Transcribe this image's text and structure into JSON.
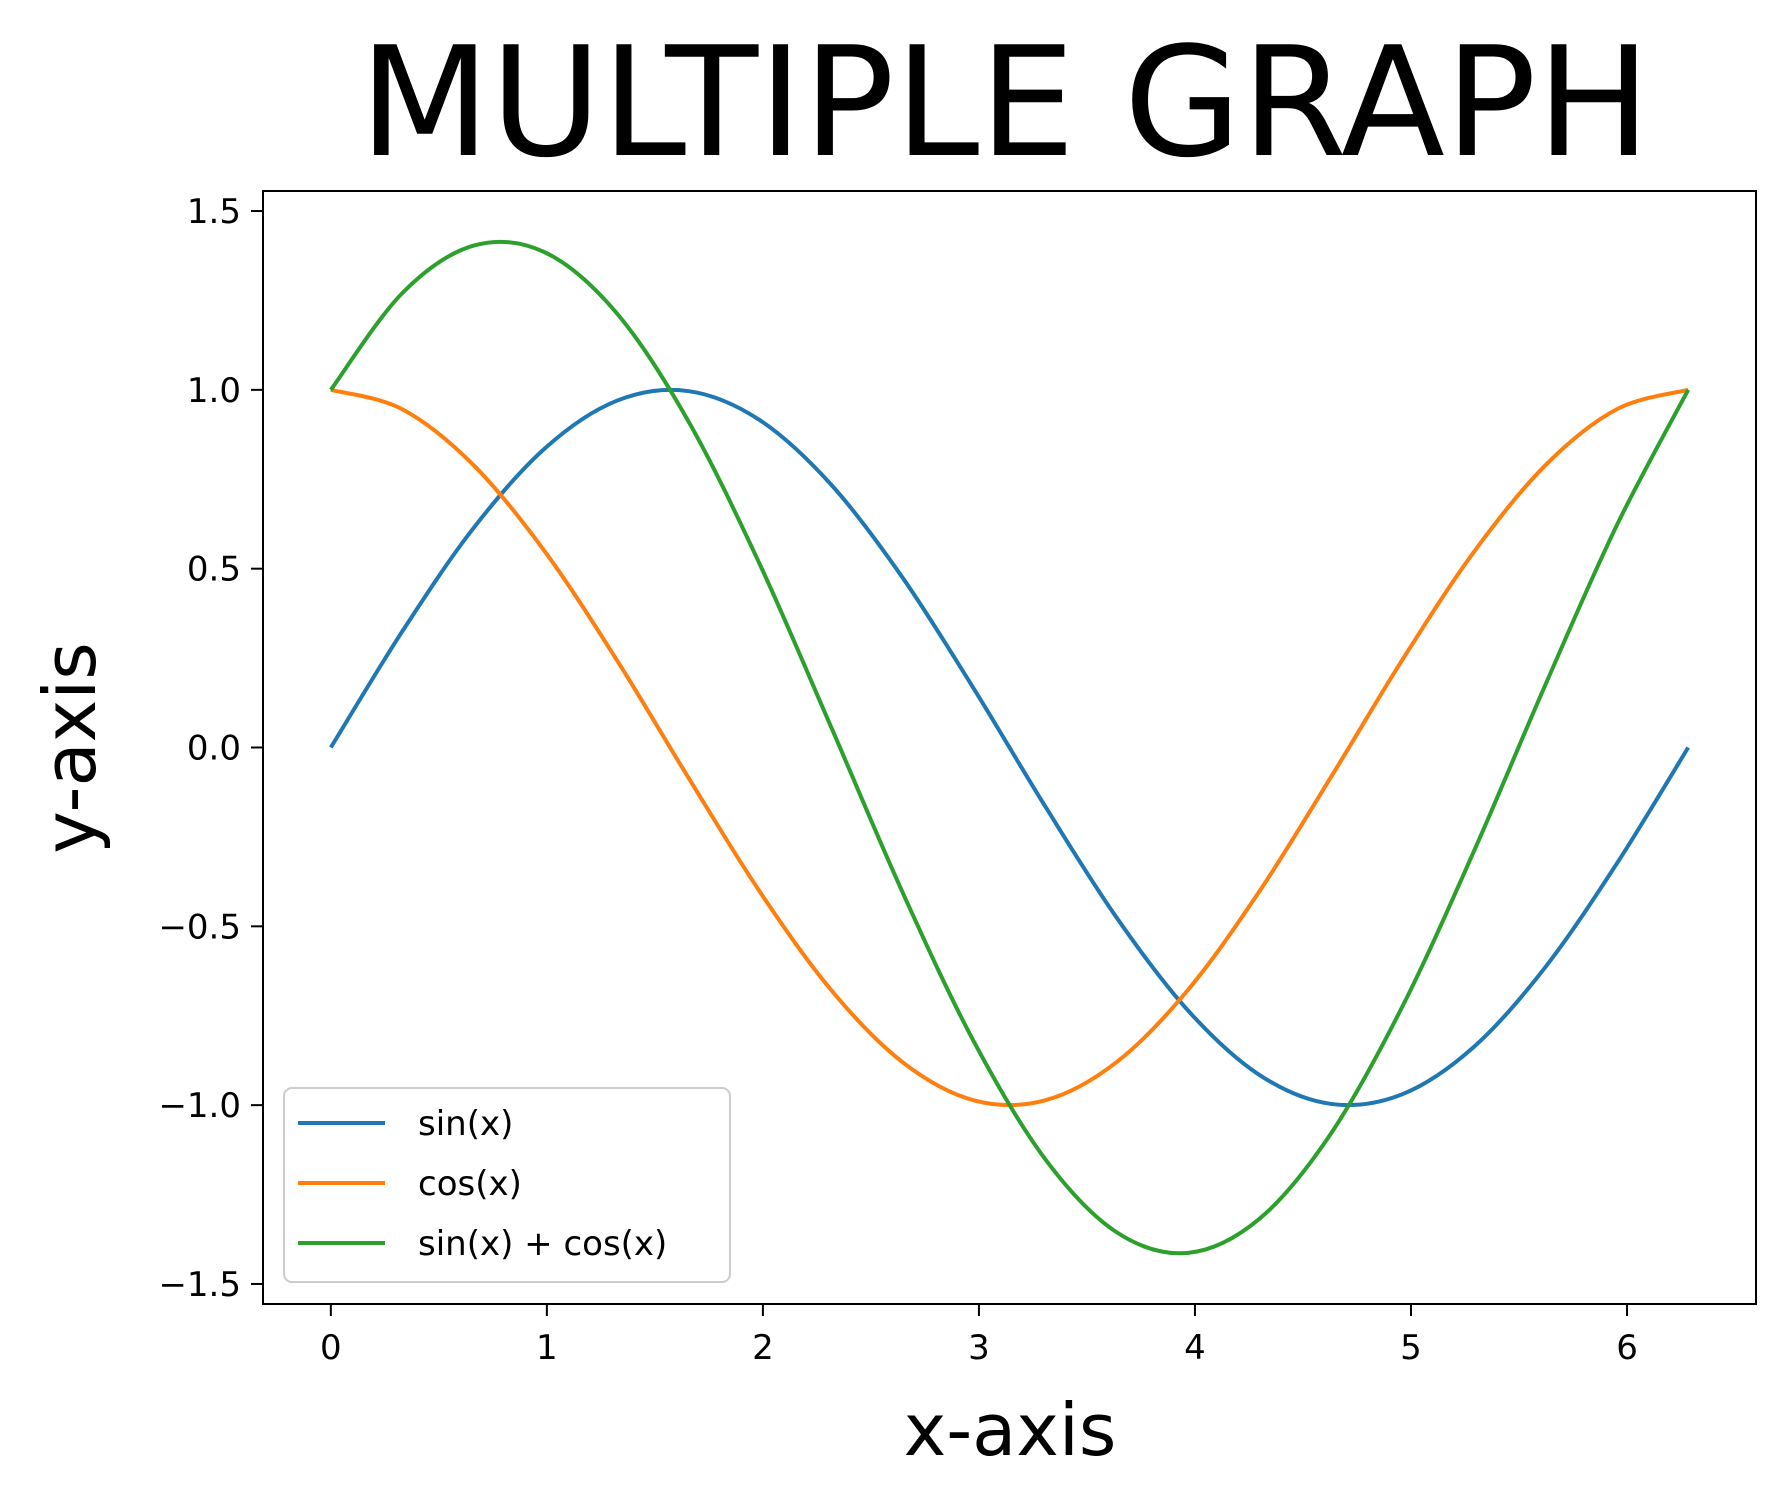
{
  "chart_data": {
    "type": "line",
    "title": "MULTIPLE GRAPH",
    "xlabel": "x-axis",
    "ylabel": "y-axis",
    "xlim": [
      -0.314,
      6.597
    ],
    "ylim": [
      -1.556,
      1.556
    ],
    "xticks": [
      0,
      1,
      2,
      3,
      4,
      5,
      6
    ],
    "xtick_labels": [
      "0",
      "1",
      "2",
      "3",
      "4",
      "5",
      "6"
    ],
    "yticks": [
      -1.5,
      -1.0,
      -0.5,
      0.0,
      0.5,
      1.0,
      1.5
    ],
    "ytick_labels": [
      "−1.5",
      "−1.0",
      "−0.5",
      "0.0",
      "0.5",
      "1.0",
      "1.5"
    ],
    "grid": false,
    "legend_position": "lower-left",
    "x": [
      0.0,
      0.3307,
      0.6614,
      0.9921,
      1.3228,
      1.6535,
      1.9842,
      2.3149,
      2.6456,
      2.9762,
      3.3069,
      3.6376,
      3.9683,
      4.299,
      4.6297,
      4.9604,
      5.2911,
      5.6218,
      5.9525,
      6.2832
    ],
    "series": [
      {
        "name": "sin(x)",
        "color": "#1f77b4",
        "values": [
          0.0,
          0.3247,
          0.6142,
          0.8372,
          0.9694,
          0.9966,
          0.9158,
          0.7357,
          0.4759,
          0.1646,
          -0.1646,
          -0.4759,
          -0.7357,
          -0.9158,
          -0.9966,
          -0.9694,
          -0.8372,
          -0.6142,
          -0.3247,
          0.0
        ]
      },
      {
        "name": "cos(x)",
        "color": "#ff7f0e",
        "values": [
          1.0,
          0.9458,
          0.7891,
          0.5469,
          0.2455,
          -0.0826,
          -0.4017,
          -0.6773,
          -0.8795,
          -0.9864,
          -0.9864,
          -0.8795,
          -0.6773,
          -0.4017,
          -0.0826,
          0.2455,
          0.5469,
          0.7891,
          0.9458,
          1.0
        ]
      },
      {
        "name": "sin(x) + cos(x)",
        "color": "#2ca02c",
        "values": [
          1.0,
          1.2705,
          1.4033,
          1.3841,
          1.2149,
          0.914,
          0.5141,
          0.0584,
          -0.4036,
          -0.8218,
          -1.151,
          -1.3554,
          -1.413,
          -1.3175,
          -1.0792,
          -0.7239,
          -0.2903,
          0.1749,
          0.6211,
          1.0
        ]
      }
    ]
  }
}
